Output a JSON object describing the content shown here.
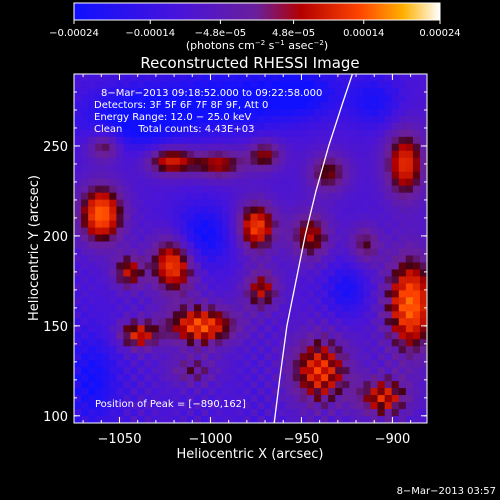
{
  "chart_data": {
    "type": "heatmap",
    "title": "Reconstructed RHESSI Image",
    "xlabel": "Heliocentric X (arcsec)",
    "ylabel": "Heliocentric Y (arcsec)",
    "xlim": [
      -1075,
      -881
    ],
    "ylim": [
      96,
      290
    ],
    "x_ticks": [
      -1050,
      -1000,
      -950,
      -900
    ],
    "x_tick_labels": [
      "−1050",
      "−1000",
      "−950",
      "−900"
    ],
    "y_ticks": [
      100,
      150,
      200,
      250
    ],
    "y_tick_labels": [
      "100",
      "150",
      "200",
      "250"
    ],
    "colorbar": {
      "range": [
        -0.00024,
        0.00024
      ],
      "ticks": [
        -0.00024,
        -0.00014,
        -4.8e-05,
        4.8e-05,
        0.00014,
        0.00024
      ],
      "tick_labels": [
        "−0.00024",
        "−0.00014",
        "−4.8e−05",
        "4.8e−05",
        "0.00014",
        "0.00024"
      ],
      "units_text": "(photons cm",
      "units_sup1": "−2",
      "units_mid": " s",
      "units_sup2": "−1",
      "units_end": " asec",
      "units_sup3": "−2",
      "units_close": ")"
    },
    "annotations": {
      "time_range": "8−Mar−2013 09:18:52.000 to 09:22:58.000",
      "detectors": "Detectors: 3F 5F 6F 7F 8F 9F, Att 0",
      "energy_range": "Energy Range: 12.0 − 25.0 keV",
      "clean": "Clean     Total counts: 4.43E+03",
      "peak": "Position of Peak = [−890,162]"
    },
    "peak_position": [
      -890,
      162
    ],
    "limb_curve": [
      [
        -965,
        96
      ],
      [
        -962,
        120
      ],
      [
        -958,
        150
      ],
      [
        -953,
        175
      ],
      [
        -948,
        200
      ],
      [
        -942,
        225
      ],
      [
        -935,
        250
      ],
      [
        -927,
        275
      ],
      [
        -922,
        290
      ]
    ],
    "hot_regions": [
      {
        "x": -1060,
        "y": 212,
        "sx": 9,
        "sy": 12,
        "amp": 0.00024
      },
      {
        "x": -1058,
        "y": 250,
        "sx": 7,
        "sy": 6,
        "amp": 0.00016
      },
      {
        "x": -1022,
        "y": 242,
        "sx": 10,
        "sy": 6,
        "amp": 0.0002
      },
      {
        "x": -1020,
        "y": 185,
        "sx": 9,
        "sy": 12,
        "amp": 0.00024
      },
      {
        "x": -1045,
        "y": 180,
        "sx": 6,
        "sy": 7,
        "amp": 0.00016
      },
      {
        "x": -1005,
        "y": 150,
        "sx": 14,
        "sy": 8,
        "amp": 0.00022
      },
      {
        "x": -1040,
        "y": 145,
        "sx": 8,
        "sy": 6,
        "amp": 0.00018
      },
      {
        "x": -975,
        "y": 205,
        "sx": 8,
        "sy": 10,
        "amp": 0.00022
      },
      {
        "x": -995,
        "y": 240,
        "sx": 10,
        "sy": 6,
        "amp": 0.00016
      },
      {
        "x": -970,
        "y": 245,
        "sx": 7,
        "sy": 6,
        "amp": 0.00015
      },
      {
        "x": -972,
        "y": 170,
        "sx": 7,
        "sy": 8,
        "amp": 0.00016
      },
      {
        "x": -1010,
        "y": 125,
        "sx": 10,
        "sy": 6,
        "amp": 0.0001
      },
      {
        "x": -940,
        "y": 125,
        "sx": 12,
        "sy": 14,
        "amp": 0.0002
      },
      {
        "x": -945,
        "y": 200,
        "sx": 8,
        "sy": 10,
        "amp": 0.00016
      },
      {
        "x": -935,
        "y": 235,
        "sx": 8,
        "sy": 8,
        "amp": 0.00014
      },
      {
        "x": -890,
        "y": 162,
        "sx": 10,
        "sy": 20,
        "amp": 0.00024
      },
      {
        "x": -893,
        "y": 240,
        "sx": 8,
        "sy": 14,
        "amp": 0.0002
      },
      {
        "x": -905,
        "y": 110,
        "sx": 10,
        "sy": 8,
        "amp": 0.00018
      },
      {
        "x": -915,
        "y": 195,
        "sx": 6,
        "sy": 8,
        "amp": 0.00012
      }
    ],
    "cold_regions": [
      {
        "x": -1005,
        "y": 200,
        "sx": 12,
        "sy": 12,
        "amp": -0.00016
      },
      {
        "x": -1040,
        "y": 265,
        "sx": 20,
        "sy": 12,
        "amp": -0.00018
      },
      {
        "x": -990,
        "y": 275,
        "sx": 25,
        "sy": 12,
        "amp": -0.00016
      },
      {
        "x": -950,
        "y": 280,
        "sx": 15,
        "sy": 10,
        "amp": -0.00014
      },
      {
        "x": -1065,
        "y": 120,
        "sx": 10,
        "sy": 18,
        "amp": -0.00014
      },
      {
        "x": -925,
        "y": 170,
        "sx": 8,
        "sy": 10,
        "amp": -0.00012
      },
      {
        "x": -910,
        "y": 275,
        "sx": 10,
        "sy": 10,
        "amp": -0.00012
      }
    ]
  },
  "footer": {
    "timestamp": "8−Mar−2013 03:57"
  }
}
